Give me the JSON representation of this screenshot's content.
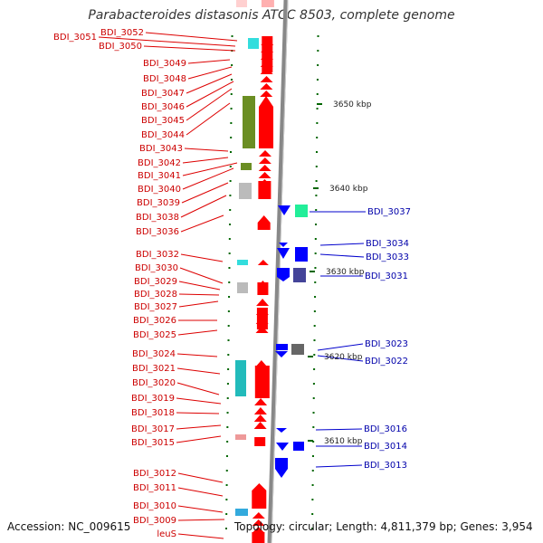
{
  "title": "Parabacteroides distasonis ATCC 8503, complete genome",
  "accession": "Accession: NC_009615",
  "topology": "Topology: circular; Length: 4,811,379 bp; Genes: 3,954",
  "colors": {
    "forward": "#ff0000",
    "reverse": "#0000ff",
    "left_label": "#cc0000",
    "right_label": "#0000aa",
    "tick": "#006600",
    "backbone": "#888888"
  },
  "scale_labels": [
    "3650 kbp",
    "3640 kbp",
    "3630 kbp",
    "3620 kbp",
    "3610 kbp"
  ],
  "left_genes": [
    "BDI_3051",
    "BDI_3052",
    "BDI_3050",
    "BDI_3049",
    "BDI_3048",
    "BDI_3047",
    "BDI_3046",
    "BDI_3045",
    "BDI_3044",
    "BDI_3043",
    "BDI_3042",
    "BDI_3041",
    "BDI_3040",
    "BDI_3039",
    "BDI_3038",
    "BDI_3036",
    "BDI_3032",
    "BDI_3030",
    "BDI_3029",
    "BDI_3028",
    "BDI_3027",
    "BDI_3026",
    "BDI_3025",
    "BDI_3024",
    "BDI_3021",
    "BDI_3020",
    "BDI_3019",
    "BDI_3018",
    "BDI_3017",
    "BDI_3015",
    "BDI_3012",
    "BDI_3011",
    "BDI_3010",
    "BDI_3009",
    "leuS"
  ],
  "right_genes": [
    "BDI_3037",
    "BDI_3034",
    "BDI_3033",
    "BDI_3031",
    "BDI_3023",
    "BDI_3022",
    "BDI_3016",
    "BDI_3014",
    "BDI_3013"
  ]
}
